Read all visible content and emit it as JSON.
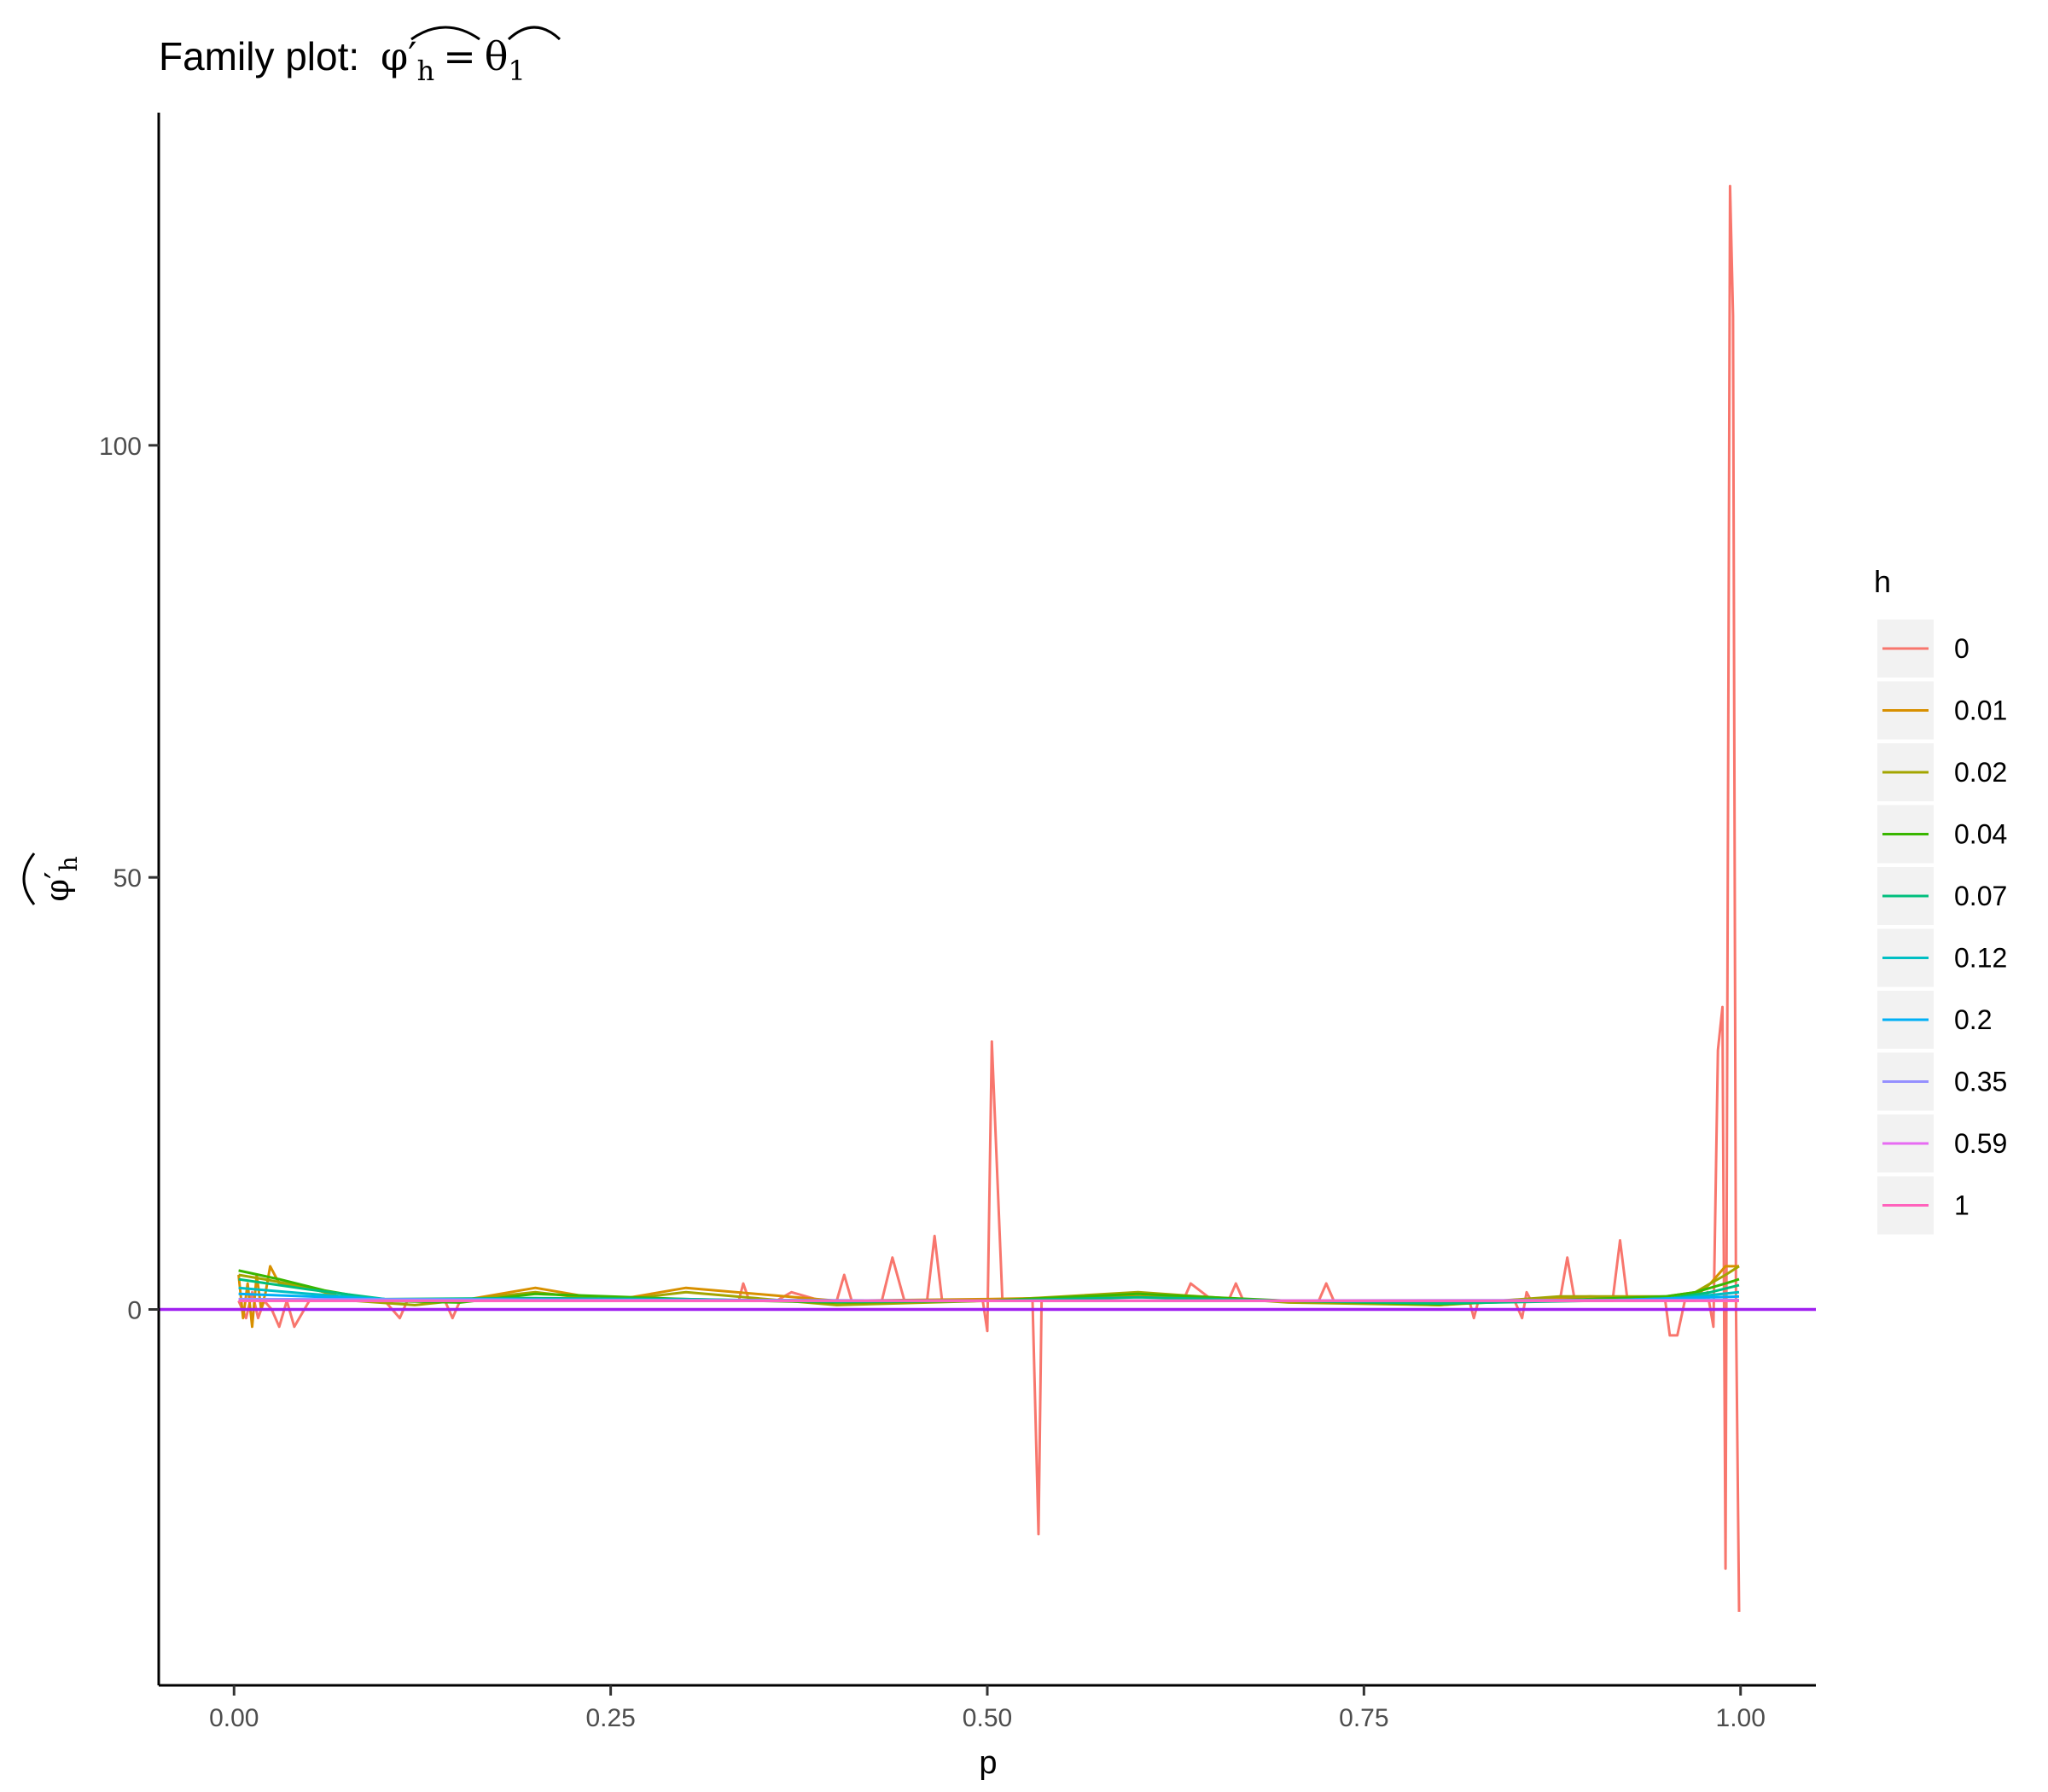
{
  "title": {
    "prefix": "Family plot:",
    "lhs_symbol": "φ′",
    "lhs_sub": "h",
    "equals": "=",
    "rhs_symbol": "θ",
    "rhs_sub": "1"
  },
  "axes": {
    "xlabel": "p",
    "ylabel_symbol": "φ′",
    "ylabel_sub": "h"
  },
  "legend": {
    "title": "h",
    "entries": [
      "0",
      "0.01",
      "0.02",
      "0.04",
      "0.07",
      "0.12",
      "0.2",
      "0.35",
      "0.59",
      "1"
    ]
  },
  "colors": {
    "reference_line": "#A020F0",
    "axis": "#000000",
    "tick_label": "#4d4d4d",
    "legend_key_bg": "#F2F2F2"
  },
  "chart_data": {
    "type": "line",
    "title": "Family plot: φ′h = θ1",
    "xlabel": "p",
    "ylabel": "φ′h",
    "xlim": [
      -0.05,
      1.05
    ],
    "ylim": [
      -43.5,
      138.5
    ],
    "x_ticks": [
      0,
      0.25,
      0.5,
      0.75,
      1
    ],
    "x_tick_labels": [
      "0.00",
      "0.25",
      "0.50",
      "0.75",
      "1.00"
    ],
    "y_ticks": [
      0,
      50,
      100
    ],
    "y_tick_labels": [
      "0",
      "50",
      "100"
    ],
    "grid": false,
    "legend_position": "right",
    "reference_line": {
      "y": 0,
      "color": "#A020F0"
    },
    "series": [
      {
        "name": "0",
        "color": "#F8766D",
        "x": [
          0.003,
          0.008,
          0.012,
          0.016,
          0.02,
          0.025,
          0.03,
          0.035,
          0.04,
          0.05,
          0.07,
          0.1,
          0.11,
          0.115,
          0.12,
          0.14,
          0.145,
          0.15,
          0.2,
          0.25,
          0.3,
          0.335,
          0.338,
          0.342,
          0.36,
          0.37,
          0.39,
          0.4,
          0.405,
          0.41,
          0.43,
          0.437,
          0.445,
          0.46,
          0.465,
          0.47,
          0.49,
          0.497,
          0.5,
          0.503,
          0.51,
          0.53,
          0.534,
          0.536,
          0.54,
          0.6,
          0.63,
          0.635,
          0.65,
          0.66,
          0.665,
          0.67,
          0.72,
          0.725,
          0.73,
          0.8,
          0.82,
          0.823,
          0.826,
          0.85,
          0.855,
          0.858,
          0.861,
          0.88,
          0.885,
          0.89,
          0.9,
          0.915,
          0.92,
          0.925,
          0.95,
          0.953,
          0.958,
          0.963,
          0.97,
          0.978,
          0.982,
          0.985,
          0.988,
          0.99,
          0.993,
          0.995,
          0.997,
          0.999
        ],
        "y": [
          1,
          -1,
          2,
          -1,
          1,
          0,
          -2,
          1,
          -2,
          1,
          1,
          1,
          -1,
          1,
          1,
          1,
          -1,
          1,
          1,
          1,
          1,
          1,
          3,
          1,
          1,
          2,
          1,
          1,
          4,
          1,
          1,
          6,
          1,
          1,
          8.5,
          1,
          1,
          1,
          -2.5,
          31,
          1,
          1,
          -26,
          1,
          1,
          1,
          1,
          3,
          1,
          1,
          3,
          1,
          1,
          3,
          1,
          1,
          1,
          -1,
          1,
          1,
          -1,
          2,
          1,
          1,
          6,
          1,
          1,
          1,
          8,
          1,
          1,
          -3,
          -3,
          1,
          1,
          2,
          -2,
          30,
          35,
          -30,
          130,
          115,
          0,
          -35
        ]
      },
      {
        "name": "0.01",
        "color": "#D89000",
        "x": [
          0.003,
          0.006,
          0.009,
          0.012,
          0.015,
          0.018,
          0.021,
          0.024,
          0.03,
          0.05,
          0.08,
          0.15,
          0.2,
          0.25,
          0.3,
          0.4,
          0.5,
          0.6,
          0.7,
          0.8,
          0.9,
          0.95,
          0.97,
          0.98,
          0.99,
          0.999
        ],
        "y": [
          4,
          -1,
          3,
          -2,
          4,
          0,
          2,
          5,
          3,
          2.5,
          1,
          1,
          2.5,
          1,
          2.5,
          1,
          1.2,
          1.5,
          1,
          0.5,
          1.5,
          1.2,
          1.5,
          3,
          5,
          5
        ]
      },
      {
        "name": "0.02",
        "color": "#A3A500",
        "x": [
          0.003,
          0.02,
          0.05,
          0.08,
          0.12,
          0.2,
          0.25,
          0.3,
          0.4,
          0.5,
          0.6,
          0.7,
          0.8,
          0.88,
          0.95,
          0.97,
          0.98,
          0.99,
          0.999
        ],
        "y": [
          4,
          3.5,
          2.5,
          1,
          0.5,
          2,
          1,
          2,
          0.5,
          1,
          2,
          0.8,
          0.5,
          1.5,
          1.5,
          2,
          3,
          4,
          5
        ]
      },
      {
        "name": "0.04",
        "color": "#39B600",
        "x": [
          0.003,
          0.03,
          0.06,
          0.1,
          0.15,
          0.2,
          0.3,
          0.4,
          0.5,
          0.6,
          0.7,
          0.8,
          0.9,
          0.95,
          0.97,
          0.98,
          0.99,
          0.999
        ],
        "y": [
          4.5,
          3.5,
          2.2,
          1,
          0.8,
          1.8,
          1.2,
          0.8,
          1,
          1.8,
          1,
          0.6,
          1.2,
          1.5,
          2,
          2.5,
          3,
          3.5
        ]
      },
      {
        "name": "0.07",
        "color": "#00BF7D",
        "x": [
          0.003,
          0.05,
          0.1,
          0.2,
          0.3,
          0.4,
          0.5,
          0.6,
          0.7,
          0.8,
          0.9,
          0.95,
          0.98,
          0.999
        ],
        "y": [
          3.5,
          2.3,
          1.2,
          1.3,
          1.2,
          0.9,
          1,
          1.4,
          1,
          0.7,
          1,
          1.2,
          2,
          2.8
        ]
      },
      {
        "name": "0.12",
        "color": "#00BFC4",
        "x": [
          0.003,
          0.05,
          0.1,
          0.3,
          0.5,
          0.7,
          0.9,
          0.96,
          0.999
        ],
        "y": [
          2.5,
          1.8,
          1.2,
          1.1,
          1,
          1,
          1,
          1.3,
          2
        ]
      },
      {
        "name": "0.2",
        "color": "#00B0F6",
        "x": [
          0.003,
          0.1,
          0.5,
          0.9,
          0.999
        ],
        "y": [
          1.8,
          1.2,
          1,
          1,
          1.5
        ]
      },
      {
        "name": "0.35",
        "color": "#9590FF",
        "x": [
          0.003,
          0.5,
          0.999
        ],
        "y": [
          1.2,
          1,
          1.1
        ]
      },
      {
        "name": "0.59",
        "color": "#E76BF3",
        "x": [
          0.003,
          0.5,
          0.999
        ],
        "y": [
          1,
          1,
          1
        ]
      },
      {
        "name": "1",
        "color": "#FF62BC",
        "x": [
          0.003,
          0.999
        ],
        "y": [
          1,
          1
        ]
      }
    ]
  }
}
